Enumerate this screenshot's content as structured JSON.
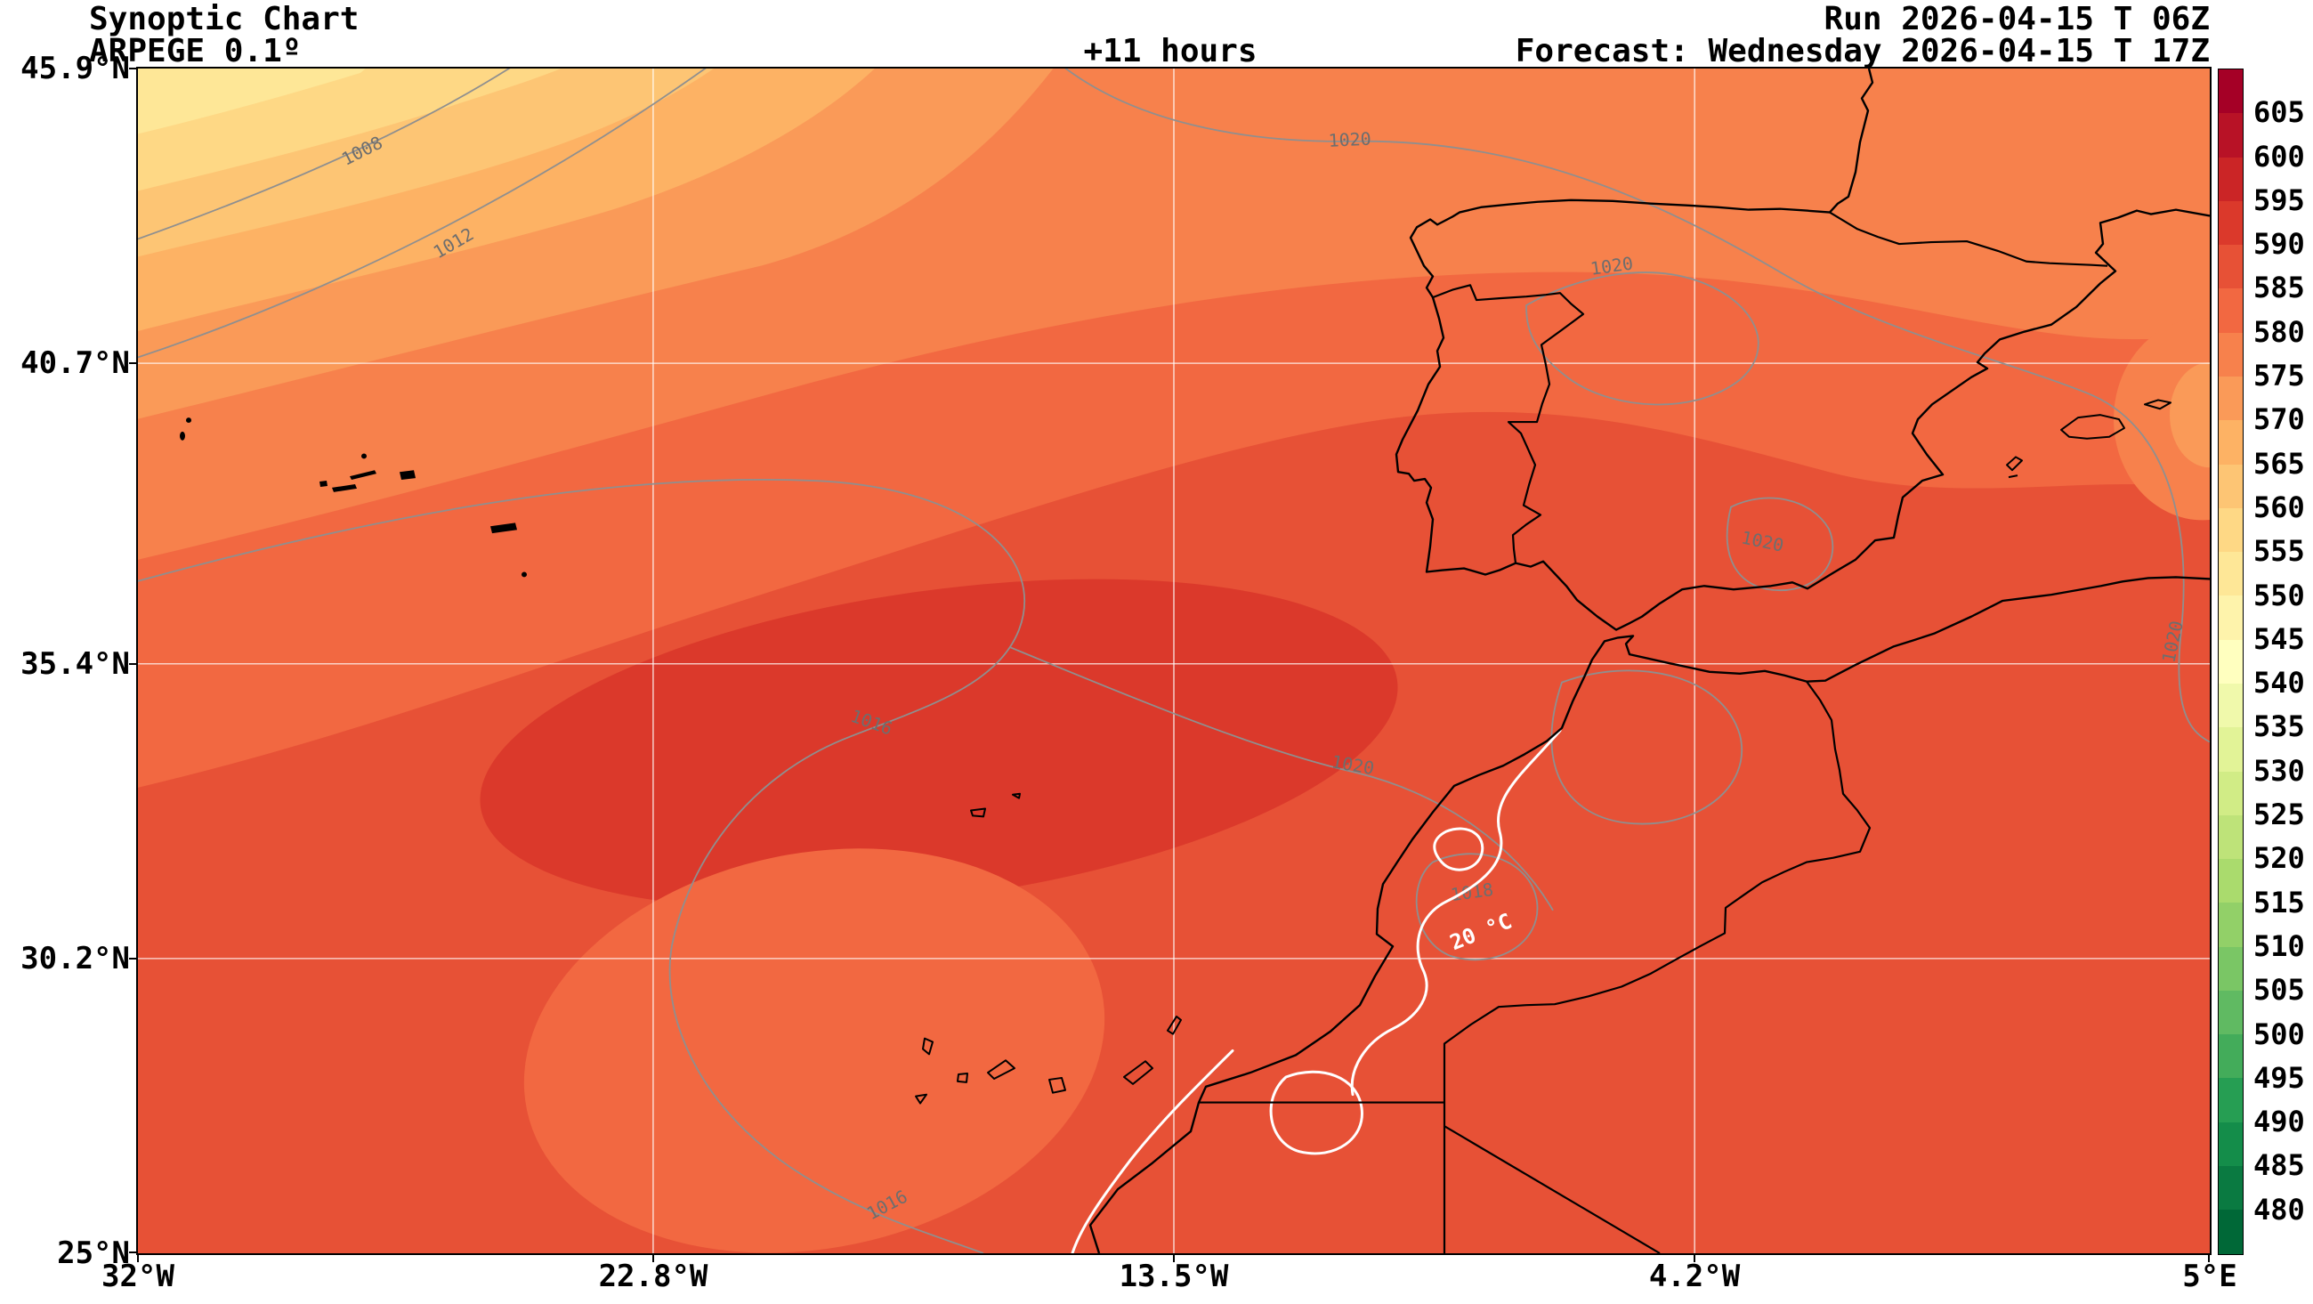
{
  "header": {
    "title": "Synoptic Chart",
    "model": "ARPEGE 0.1º",
    "lead_time": "+11 hours",
    "run": "Run 2026-04-15 T 06Z",
    "forecast": "Forecast: Wednesday 2026-04-15 T 17Z"
  },
  "axes": {
    "lat_ticks": [
      "45.9°N",
      "40.7°N",
      "35.4°N",
      "30.2°N",
      "25°N"
    ],
    "lon_ticks": [
      "32°W",
      "22.8°W",
      "13.5°W",
      "4.2°W",
      "5°E"
    ]
  },
  "colorbar": {
    "tick_values": [
      605,
      600,
      595,
      590,
      585,
      580,
      575,
      570,
      565,
      560,
      555,
      550,
      545,
      540,
      535,
      530,
      525,
      520,
      515,
      510,
      505,
      500,
      495,
      490,
      485,
      480
    ],
    "cell_colors": [
      "#a50026",
      "#b81226",
      "#cb2526",
      "#db392b",
      "#e75136",
      "#f26841",
      "#f7814c",
      "#fa9a58",
      "#fdb264",
      "#fdc574",
      "#fed885",
      "#fee797",
      "#fef3ab",
      "#ffffbf",
      "#f0f9ab",
      "#e2f397",
      "#d1ec86",
      "#bee379",
      "#aadb6d",
      "#92d068",
      "#7ac665",
      "#60ba62",
      "#43ac5a",
      "#269e53",
      "#148d4a",
      "#0a7a41",
      "#006837"
    ]
  },
  "map": {
    "isobar_labels": [
      "1008",
      "1012",
      "1016",
      "1016",
      "1020",
      "1020",
      "1020",
      "1020",
      "1020",
      "1018"
    ],
    "isotherm_label": "20 °C",
    "band_colors": {
      "shade_590": "#db392b",
      "shade_585": "#e75136",
      "shade_580": "#f26841",
      "shade_575": "#f7814c",
      "shade_570": "#fa9a58",
      "shade_565": "#fdb264",
      "shade_560": "#fdc574",
      "shade_555": "#fed885",
      "shade_550": "#fee797"
    },
    "line_colors": {
      "coastline": "#000000",
      "isobar": "#8f8f8f",
      "isotherm": "#ffffff",
      "gridline": "#ffffff"
    }
  },
  "chart_data": {
    "type": "heatmap",
    "title": "Synoptic Chart — ARPEGE 0.1º — +11 hours",
    "x_axis": {
      "ticks": [
        "32°W",
        "22.8°W",
        "13.5°W",
        "4.2°W",
        "5°E"
      ],
      "range_deg": [
        -32,
        5
      ]
    },
    "y_axis": {
      "ticks": [
        "25°N",
        "30.2°N",
        "35.4°N",
        "40.7°N",
        "45.9°N"
      ],
      "range_deg": [
        25,
        45.9
      ]
    },
    "colorbar": {
      "min": 480,
      "max": 605,
      "step": 5,
      "ticks_top_to_bottom": [
        605,
        600,
        595,
        590,
        585,
        580,
        575,
        570,
        565,
        560,
        555,
        550,
        545,
        540,
        535,
        530,
        525,
        520,
        515,
        510,
        505,
        500,
        495,
        490,
        485,
        480
      ]
    },
    "shaded_field_estimate": {
      "lons_deg": [
        -32,
        -27.4,
        -22.8,
        -18.2,
        -13.5,
        -8.9,
        -4.2,
        0.4,
        5
      ],
      "lats_deg": [
        45.9,
        40.7,
        35.4,
        30.2,
        25
      ],
      "values": [
        [
          548,
          555,
          562,
          567,
          570,
          572,
          573,
          574,
          574
        ],
        [
          560,
          567,
          573,
          577,
          579,
          580,
          579,
          578,
          577
        ],
        [
          574,
          580,
          585,
          587,
          586,
          584,
          582,
          581,
          579
        ],
        [
          580,
          584,
          587,
          583,
          585,
          586,
          584,
          583,
          582
        ],
        [
          582,
          584,
          585,
          584,
          586,
          587,
          586,
          585,
          584
        ]
      ]
    },
    "gray_contour_labels": [
      1008,
      1012,
      1016,
      1016,
      1018,
      1020,
      1020,
      1020,
      1020,
      1020
    ],
    "white_contour_label": "20 °C",
    "grid": true,
    "legend_position": "right"
  }
}
